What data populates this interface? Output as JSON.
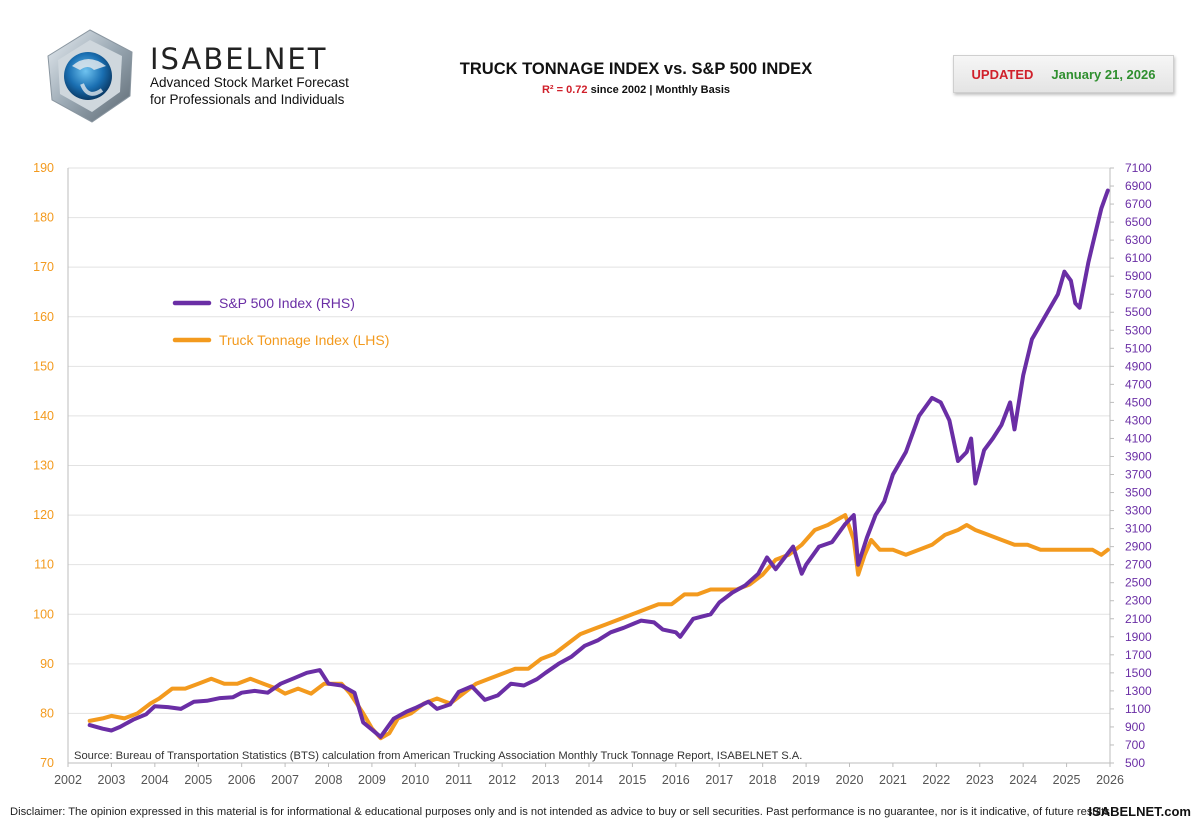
{
  "header": {
    "brand_name": "ISABELNET",
    "tagline_1": "Advanced Stock Market Forecast",
    "tagline_2": "for Professionals and Individuals",
    "title": "TRUCK TONNAGE INDEX vs. S&P 500 INDEX",
    "subtitle_r2": "R² = 0.72",
    "subtitle_rest": " since 2002 | Monthly Basis",
    "updated_label": "UPDATED",
    "updated_date": "January 21, 2026"
  },
  "footer": {
    "disclaimer": "Disclaimer: The opinion expressed in this material is for informational & educational purposes only and is not intended as advice to buy or sell securities. Past performance is no guarantee, nor is it indicative, of future results.",
    "site": "ISABELNET.com"
  },
  "colors": {
    "sp500": "#6a2ea5",
    "truck": "#f39a1e",
    "left_axis": "#f39a1e",
    "right_axis": "#6a2ea5",
    "grid": "#e2e2e2"
  },
  "chart_data": {
    "type": "line",
    "title": "TRUCK TONNAGE INDEX vs. S&P 500 INDEX",
    "source": "Source: Bureau of Transportation Statistics (BTS) calculation from American Trucking Association Monthly Truck Tonnage Report, ISABELNET S.A.",
    "x_range": [
      2002,
      2026
    ],
    "x_ticks": [
      "2002",
      "2003",
      "2004",
      "2005",
      "2006",
      "2007",
      "2008",
      "2009",
      "2010",
      "2011",
      "2012",
      "2013",
      "2014",
      "2015",
      "2016",
      "2017",
      "2018",
      "2019",
      "2020",
      "2021",
      "2022",
      "2023",
      "2024",
      "2025",
      "2026"
    ],
    "ylim_left": [
      70,
      190
    ],
    "left_ticks": [
      "70",
      "80",
      "90",
      "100",
      "110",
      "120",
      "130",
      "140",
      "150",
      "160",
      "170",
      "180",
      "190"
    ],
    "ylim_right": [
      500,
      7100
    ],
    "right_ticks": [
      "500",
      "700",
      "900",
      "1100",
      "1300",
      "1500",
      "1700",
      "1900",
      "2100",
      "2300",
      "2500",
      "2700",
      "2900",
      "3100",
      "3300",
      "3500",
      "3700",
      "3900",
      "4100",
      "4300",
      "4500",
      "4700",
      "4900",
      "5100",
      "5300",
      "5500",
      "5700",
      "5900",
      "6100",
      "6300",
      "6500",
      "6700",
      "6900",
      "7100"
    ],
    "legend_position": "upper-left",
    "series": [
      {
        "name": "S&P 500 Index (RHS)",
        "axis": "right",
        "x": [
          2002.5,
          2002.8,
          2003.0,
          2003.2,
          2003.5,
          2003.8,
          2004.0,
          2004.3,
          2004.6,
          2004.9,
          2005.2,
          2005.5,
          2005.8,
          2006.0,
          2006.3,
          2006.6,
          2006.9,
          2007.2,
          2007.5,
          2007.8,
          2008.0,
          2008.3,
          2008.6,
          2008.8,
          2009.0,
          2009.2,
          2009.5,
          2009.8,
          2010.0,
          2010.3,
          2010.5,
          2010.8,
          2011.0,
          2011.3,
          2011.6,
          2011.9,
          2012.2,
          2012.5,
          2012.8,
          2013.0,
          2013.3,
          2013.6,
          2013.9,
          2014.2,
          2014.5,
          2014.8,
          2015.2,
          2015.5,
          2015.7,
          2016.0,
          2016.1,
          2016.4,
          2016.8,
          2017.0,
          2017.3,
          2017.6,
          2017.9,
          2018.1,
          2018.3,
          2018.7,
          2018.9,
          2019.0,
          2019.3,
          2019.6,
          2019.9,
          2020.1,
          2020.2,
          2020.4,
          2020.6,
          2020.8,
          2021.0,
          2021.3,
          2021.6,
          2021.9,
          2022.1,
          2022.3,
          2022.5,
          2022.7,
          2022.8,
          2022.9,
          2023.1,
          2023.3,
          2023.5,
          2023.7,
          2023.8,
          2024.0,
          2024.2,
          2024.5,
          2024.8,
          2024.95,
          2025.1,
          2025.2,
          2025.3,
          2025.5,
          2025.6,
          2025.8,
          2025.95
        ],
        "values": [
          920,
          880,
          860,
          900,
          980,
          1040,
          1130,
          1120,
          1100,
          1180,
          1190,
          1220,
          1230,
          1280,
          1300,
          1280,
          1380,
          1440,
          1500,
          1530,
          1380,
          1360,
          1280,
          950,
          870,
          790,
          990,
          1070,
          1110,
          1180,
          1100,
          1150,
          1290,
          1350,
          1200,
          1250,
          1380,
          1360,
          1430,
          1500,
          1600,
          1680,
          1800,
          1860,
          1950,
          2000,
          2080,
          2060,
          1980,
          1950,
          1900,
          2100,
          2150,
          2280,
          2390,
          2470,
          2600,
          2780,
          2650,
          2900,
          2600,
          2700,
          2900,
          2950,
          3150,
          3250,
          2700,
          3000,
          3250,
          3400,
          3700,
          3950,
          4350,
          4550,
          4500,
          4300,
          3850,
          3950,
          4100,
          3600,
          3970,
          4100,
          4250,
          4500,
          4200,
          4800,
          5200,
          5450,
          5700,
          5950,
          5850,
          5600,
          5550,
          6050,
          6250,
          6650,
          6850
        ]
      },
      {
        "name": "Truck Tonnage Index (LHS)",
        "axis": "left",
        "x": [
          2002.5,
          2002.8,
          2003.0,
          2003.3,
          2003.6,
          2003.9,
          2004.1,
          2004.4,
          2004.7,
          2005.0,
          2005.3,
          2005.6,
          2005.9,
          2006.2,
          2006.5,
          2006.8,
          2007.0,
          2007.3,
          2007.6,
          2007.9,
          2008.1,
          2008.3,
          2008.5,
          2008.8,
          2009.0,
          2009.2,
          2009.4,
          2009.6,
          2009.9,
          2010.2,
          2010.5,
          2010.8,
          2011.1,
          2011.4,
          2011.7,
          2012.0,
          2012.3,
          2012.6,
          2012.9,
          2013.2,
          2013.5,
          2013.8,
          2014.1,
          2014.4,
          2014.7,
          2015.0,
          2015.3,
          2015.6,
          2015.9,
          2016.2,
          2016.5,
          2016.8,
          2017.1,
          2017.4,
          2017.7,
          2018.0,
          2018.3,
          2018.6,
          2018.9,
          2019.2,
          2019.5,
          2019.7,
          2019.9,
          2020.1,
          2020.2,
          2020.35,
          2020.5,
          2020.7,
          2021.0,
          2021.3,
          2021.6,
          2021.9,
          2022.2,
          2022.5,
          2022.7,
          2022.9,
          2023.2,
          2023.5,
          2023.8,
          2024.1,
          2024.4,
          2024.7,
          2025.0,
          2025.3,
          2025.6,
          2025.8,
          2025.95
        ],
        "values": [
          78.5,
          79,
          79.5,
          79,
          80,
          82,
          83,
          85,
          85,
          86,
          87,
          86,
          86,
          87,
          86,
          85,
          84,
          85,
          84,
          86,
          86,
          86,
          84,
          80,
          77,
          75,
          76,
          79,
          80,
          82,
          83,
          82,
          84,
          86,
          87,
          88,
          89,
          89,
          91,
          92,
          94,
          96,
          97,
          98,
          99,
          100,
          101,
          102,
          102,
          104,
          104,
          105,
          105,
          105,
          106,
          108,
          111,
          112,
          114,
          117,
          118,
          119,
          120,
          115,
          108,
          112,
          115,
          113,
          113,
          112,
          113,
          114,
          116,
          117,
          118,
          117,
          116,
          115,
          114,
          114,
          113,
          113,
          113,
          113,
          113,
          112,
          113
        ]
      }
    ]
  }
}
